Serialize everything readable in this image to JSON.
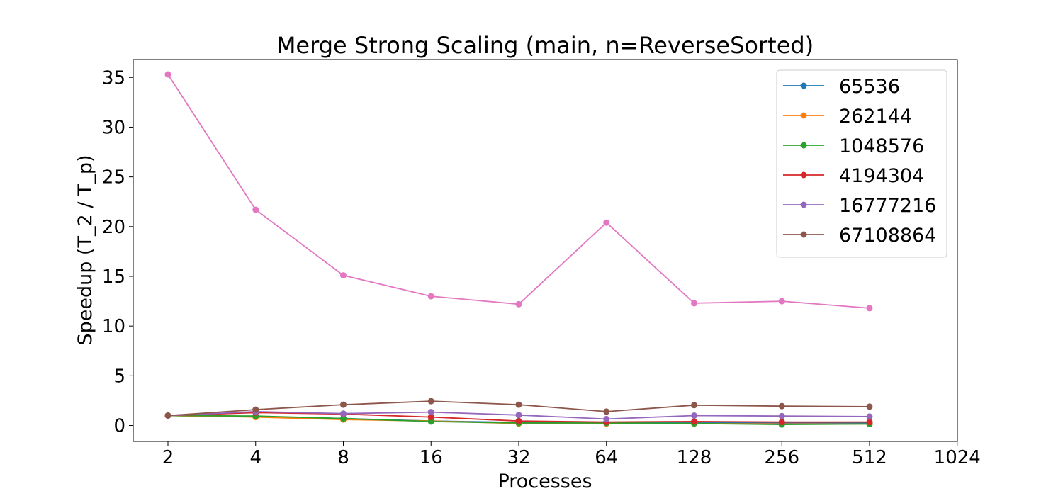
{
  "chart_data": {
    "type": "line",
    "title": "Merge Strong Scaling (main, n=ReverseSorted)",
    "xlabel": "Processes",
    "ylabel": "Speedup (T_2 / T_p)",
    "x_scale": "log2",
    "x_ticks": [
      "2",
      "4",
      "8",
      "16",
      "32",
      "64",
      "128",
      "256",
      "512",
      "1024"
    ],
    "y_ticks": [
      "0",
      "5",
      "10",
      "15",
      "20",
      "25",
      "30",
      "35"
    ],
    "xlim": [
      2,
      1024
    ],
    "ylim": [
      -1.6,
      36.8
    ],
    "grid": false,
    "legend_position": "top-right",
    "x": [
      2,
      4,
      8,
      16,
      32,
      64,
      128,
      256,
      512
    ],
    "series": [
      {
        "name": "65536",
        "color": "#1f77b4",
        "values": [
          1.0,
          0.9,
          0.7,
          0.45,
          0.3,
          0.3,
          0.3,
          0.25,
          0.25
        ]
      },
      {
        "name": "262144",
        "color": "#ff7f0e",
        "values": [
          1.0,
          0.85,
          0.6,
          0.45,
          0.2,
          0.2,
          0.2,
          0.15,
          0.15
        ]
      },
      {
        "name": "1048576",
        "color": "#2ca02c",
        "values": [
          1.0,
          0.95,
          0.7,
          0.4,
          0.25,
          0.25,
          0.2,
          0.1,
          0.15
        ]
      },
      {
        "name": "4194304",
        "color": "#d62728",
        "values": [
          1.0,
          1.3,
          1.15,
          0.85,
          0.45,
          0.35,
          0.4,
          0.35,
          0.35
        ]
      },
      {
        "name": "16777216",
        "color": "#9467bd",
        "values": [
          1.0,
          1.4,
          1.2,
          1.35,
          1.05,
          0.65,
          1.0,
          0.95,
          0.9
        ]
      },
      {
        "name": "67108864",
        "color": "#8c564b",
        "values": [
          1.0,
          1.6,
          2.1,
          2.45,
          2.1,
          1.4,
          2.05,
          1.95,
          1.9
        ]
      },
      {
        "name": "",
        "color": "#e377c2",
        "values": [
          35.3,
          21.7,
          15.1,
          13.0,
          12.2,
          20.4,
          12.3,
          12.5,
          11.8
        ]
      }
    ]
  }
}
